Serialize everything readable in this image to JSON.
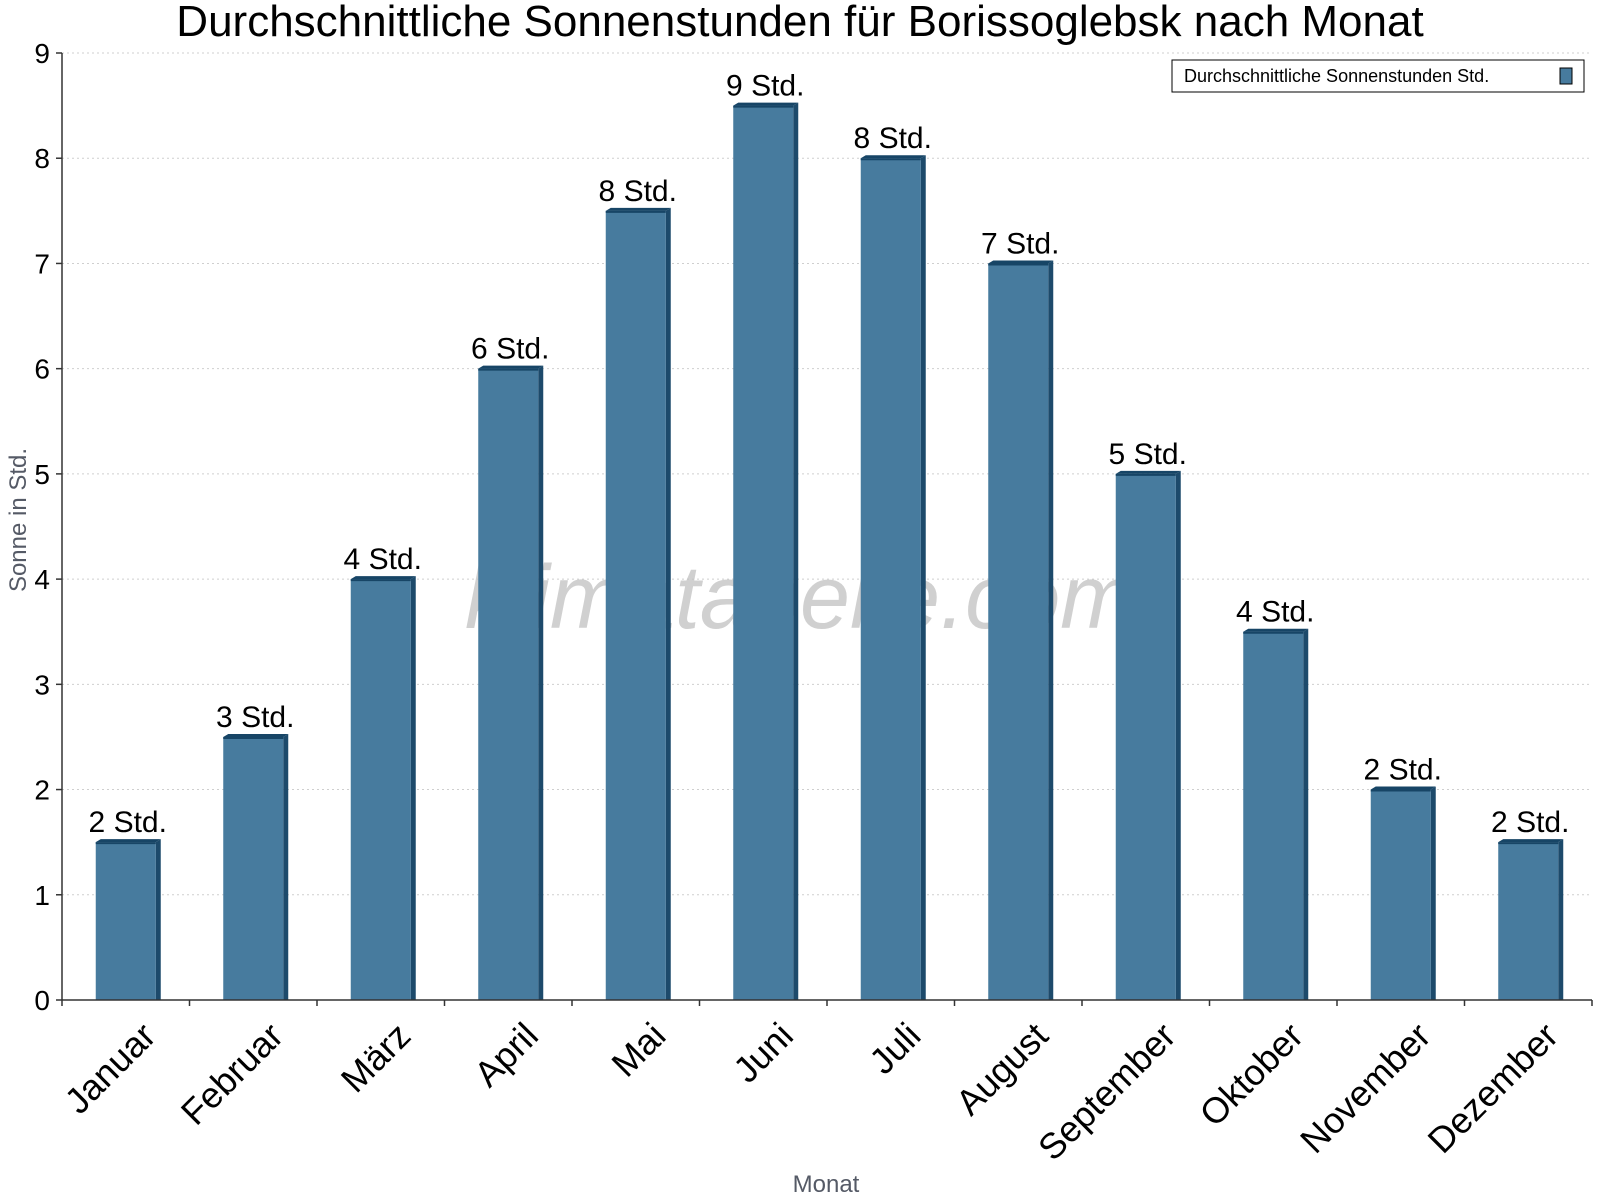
{
  "watermark": "klimatabelle.com",
  "colors": {
    "bar_face": "#477b9e",
    "bar_side": "#1d4a6b",
    "bar_top": "#174566"
  },
  "chart_data": {
    "type": "bar",
    "title": "Durchschnittliche Sonnenstunden für Borissoglebsk nach Monat",
    "xlabel": "Monat",
    "ylabel": "Sonne in Std.",
    "ylim": [
      0,
      9
    ],
    "yticks": [
      0,
      1,
      2,
      3,
      4,
      5,
      6,
      7,
      8,
      9
    ],
    "grid": true,
    "legend_position": "top-right",
    "categories": [
      "Januar",
      "Februar",
      "März",
      "April",
      "Mai",
      "Juni",
      "Juli",
      "August",
      "September",
      "Oktober",
      "November",
      "Dezember"
    ],
    "series": [
      {
        "name": "Durchschnittliche Sonnenstunden Std.",
        "values": [
          1.5,
          2.5,
          4,
          6,
          7.5,
          8.5,
          8,
          7,
          5,
          3.5,
          2,
          1.5
        ],
        "data_labels": [
          "2 Std.",
          "3 Std.",
          "4 Std.",
          "6 Std.",
          "8 Std.",
          "9 Std.",
          "8 Std.",
          "7 Std.",
          "5 Std.",
          "4 Std.",
          "2 Std.",
          "2 Std."
        ]
      }
    ]
  }
}
